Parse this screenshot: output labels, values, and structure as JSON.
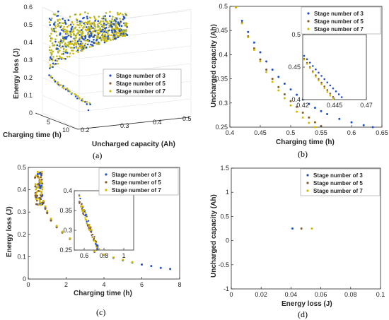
{
  "colors": {
    "s3": "#2050c8",
    "s5": "#8a5a24",
    "s7": "#d4b800",
    "s5_3d": "#b0b830"
  },
  "legend": [
    "Stage number of 3",
    "Stage number of 5",
    "Stage number of 7"
  ],
  "chart_data": [
    {
      "panel": "a",
      "type": "scatter",
      "caption": "(a)",
      "projection": "3d",
      "xlabel": "Charging time (h)",
      "ylabel": "Uncharged capacity (Ah)",
      "zlabel": "Energy loss (J)",
      "xticks": [
        "10"
      ],
      "yticks": [
        "0.2",
        "0.3",
        "0.4",
        "0.5"
      ],
      "zticks": [
        "0",
        "0.1",
        "0.2",
        "0.3",
        "0.4",
        "0.5",
        "0.6"
      ],
      "xtick_extra": "5",
      "xlim": [
        0,
        10
      ],
      "ylim": [
        0.2,
        0.5
      ],
      "zlim": [
        0,
        0.6
      ],
      "legend_position": "right",
      "series": [
        {
          "name": "Stage number of 3",
          "values": [
            [
              0.9,
              0.25,
              0.5
            ],
            [
              0.9,
              0.22,
              0.45
            ],
            [
              0.8,
              0.29,
              0.42
            ],
            [
              0.9,
              0.31,
              0.38
            ],
            [
              1.5,
              0.27,
              0.33
            ],
            [
              2.4,
              0.3,
              0.26
            ],
            [
              3.3,
              0.3,
              0.2
            ],
            [
              4.2,
              0.3,
              0.16
            ],
            [
              5.3,
              0.31,
              0.13
            ]
          ]
        },
        {
          "name": "Stage number of 5",
          "values": [
            [
              0.8,
              0.28,
              0.48
            ],
            [
              0.9,
              0.24,
              0.44
            ],
            [
              0.8,
              0.3,
              0.4
            ],
            [
              1.4,
              0.27,
              0.33
            ],
            [
              2.2,
              0.3,
              0.27
            ],
            [
              3.1,
              0.3,
              0.21
            ]
          ]
        },
        {
          "name": "Stage number of 7",
          "values": [
            [
              0.8,
              0.27,
              0.49
            ],
            [
              0.9,
              0.23,
              0.43
            ],
            [
              0.8,
              0.31,
              0.39
            ],
            [
              1.3,
              0.28,
              0.34
            ],
            [
              2.0,
              0.3,
              0.28
            ],
            [
              2.9,
              0.3,
              0.22
            ]
          ]
        }
      ]
    },
    {
      "panel": "b",
      "type": "scatter",
      "caption": "(b)",
      "xlabel": "Charging time (h)",
      "ylabel": "Uncharged capacity (Ah)",
      "xlim": [
        0.4,
        0.65
      ],
      "ylim": [
        0.25,
        0.5
      ],
      "xticks": [
        "0.4",
        "0.45",
        "0.5",
        "0.55",
        "0.6",
        "0.65"
      ],
      "yticks": [
        "0.25",
        "0.3",
        "0.35",
        "0.4",
        "0.45",
        "0.5"
      ],
      "legend_position": "top-right",
      "inset": {
        "xlim": [
          0.42,
          0.47
        ],
        "ylim": [
          0.4,
          0.5
        ],
        "xticks": [
          "0.42",
          "0.445",
          "0.47"
        ],
        "yticks": [
          "0.4",
          "0.45",
          "0.5"
        ]
      },
      "series": [
        {
          "name": "Stage number of 3",
          "x": [
            0.41,
            0.42,
            0.43,
            0.44,
            0.45,
            0.46,
            0.47,
            0.48,
            0.49,
            0.5,
            0.51,
            0.52,
            0.53,
            0.54,
            0.55,
            0.56,
            0.58,
            0.6,
            0.62,
            0.635
          ],
          "y": [
            0.498,
            0.47,
            0.447,
            0.425,
            0.405,
            0.386,
            0.369,
            0.354,
            0.34,
            0.328,
            0.317,
            0.307,
            0.298,
            0.29,
            0.283,
            0.277,
            0.267,
            0.26,
            0.254,
            0.25
          ]
        },
        {
          "name": "Stage number of 5",
          "x": [
            0.41,
            0.42,
            0.43,
            0.44,
            0.45,
            0.46,
            0.47,
            0.48,
            0.49,
            0.5,
            0.51,
            0.52,
            0.53,
            0.54,
            0.55
          ],
          "y": [
            0.498,
            0.466,
            0.438,
            0.413,
            0.39,
            0.369,
            0.35,
            0.333,
            0.318,
            0.304,
            0.292,
            0.28,
            0.27,
            0.26,
            0.252
          ]
        },
        {
          "name": "Stage number of 7",
          "x": [
            0.41,
            0.42,
            0.43,
            0.44,
            0.45,
            0.46,
            0.47,
            0.48,
            0.49,
            0.5,
            0.51,
            0.52,
            0.53,
            0.54
          ],
          "y": [
            0.498,
            0.465,
            0.436,
            0.41,
            0.386,
            0.364,
            0.344,
            0.326,
            0.31,
            0.295,
            0.282,
            0.27,
            0.259,
            0.25
          ]
        }
      ]
    },
    {
      "panel": "c",
      "type": "scatter",
      "caption": "(c)",
      "xlabel": "Charging time (h)",
      "ylabel": "Energy loss (J)",
      "xlim": [
        0,
        8
      ],
      "ylim": [
        0,
        0.5
      ],
      "xticks": [
        "0",
        "2",
        "4",
        "6",
        "8"
      ],
      "yticks": [
        "0",
        "0.1",
        "0.2",
        "0.3",
        "0.4",
        "0.5"
      ],
      "legend_position": "top-right",
      "inset": {
        "xlim": [
          0.5,
          1.1
        ],
        "ylim": [
          0.25,
          0.4
        ],
        "xticks": [
          "0.6",
          "0.8",
          "1"
        ],
        "yticks": [
          "0.25",
          "0.3",
          "0.35",
          "0.4"
        ]
      },
      "series": [
        {
          "name": "Stage number of 3",
          "x": [
            0.5,
            0.6,
            0.7,
            0.8,
            0.9,
            1.0,
            1.2,
            1.5,
            1.8,
            2.2,
            2.6,
            3.0,
            3.5,
            4.0,
            4.5,
            5.0,
            5.5,
            6.0,
            6.5,
            7.0,
            7.5
          ],
          "y": [
            0.47,
            0.42,
            0.38,
            0.345,
            0.32,
            0.3,
            0.265,
            0.235,
            0.21,
            0.18,
            0.16,
            0.14,
            0.122,
            0.108,
            0.095,
            0.084,
            0.074,
            0.065,
            0.058,
            0.05,
            0.045
          ]
        },
        {
          "name": "Stage number of 5",
          "x": [
            0.5,
            0.6,
            0.7,
            0.8,
            0.9,
            1.0,
            1.2,
            1.5,
            1.8,
            2.2
          ],
          "y": [
            0.46,
            0.41,
            0.37,
            0.34,
            0.315,
            0.295,
            0.262,
            0.232,
            0.208,
            0.18
          ]
        },
        {
          "name": "Stage number of 7",
          "x": [
            0.5,
            0.6,
            0.7,
            0.8,
            0.9,
            1.0,
            1.2,
            1.5,
            1.8,
            2.2,
            2.6,
            3.0,
            3.5,
            4.0,
            4.5,
            5.0,
            5.5
          ],
          "y": [
            0.48,
            0.43,
            0.39,
            0.35,
            0.325,
            0.305,
            0.27,
            0.238,
            0.212,
            0.182,
            0.162,
            0.142,
            0.124,
            0.11,
            0.097,
            0.086,
            0.076
          ]
        }
      ]
    },
    {
      "panel": "d",
      "type": "scatter",
      "caption": "(d)",
      "xlabel": "Energy loss (J)",
      "ylabel": "Uncharged capacity (Ah)",
      "xlim": [
        0,
        0.1
      ],
      "ylim": [
        -1,
        1.5
      ],
      "xticks": [
        "0",
        "0.02",
        "0.04",
        "0.06",
        "0.08",
        "0.1"
      ],
      "yticks": [
        "-1",
        "-0.5",
        "0",
        "0.5",
        "1",
        "1.5"
      ],
      "legend_position": "top-right",
      "series": [
        {
          "name": "Stage number of 3",
          "x": [
            0.041
          ],
          "y": [
            0.25
          ]
        },
        {
          "name": "Stage number of 5",
          "x": [
            0.047
          ],
          "y": [
            0.25
          ]
        },
        {
          "name": "Stage number of 7",
          "x": [
            0.054
          ],
          "y": [
            0.25
          ]
        }
      ]
    }
  ]
}
